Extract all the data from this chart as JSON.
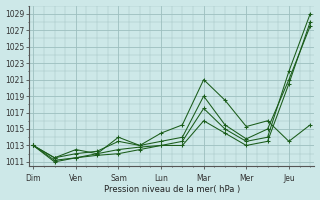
{
  "xlabel": "Pression niveau de la mer( hPa )",
  "bg_color": "#cde8e8",
  "grid_color": "#9dbfbf",
  "line_color": "#1a5c1a",
  "ylim": [
    1010.5,
    1030
  ],
  "yticks": [
    1011,
    1013,
    1015,
    1017,
    1019,
    1021,
    1023,
    1025,
    1027,
    1029
  ],
  "x_labels": [
    "Dim",
    "Ven",
    "Sam",
    "Lun",
    "Mar",
    "Mer",
    "Jeu"
  ],
  "x_positions": [
    0,
    1,
    2,
    3,
    4,
    5,
    6
  ],
  "xlim": [
    -0.1,
    6.6
  ],
  "series": [
    {
      "x": [
        0,
        0.5,
        1.0,
        1.5,
        2.0,
        2.5,
        3.0,
        3.5,
        4.0,
        4.5,
        5.0,
        5.5,
        6.0,
        6.5
      ],
      "y": [
        1013,
        1011.5,
        1012.5,
        1012,
        1014,
        1013,
        1014.5,
        1015.5,
        1021,
        1018.5,
        1015.3,
        1016,
        1013.5,
        1015.5
      ]
    },
    {
      "x": [
        0,
        0.5,
        1.0,
        1.5,
        2.0,
        2.5,
        3.0,
        3.5,
        4.0,
        4.5,
        5.0,
        5.5,
        6.0,
        6.5
      ],
      "y": [
        1013,
        1011.5,
        1012,
        1012.3,
        1013.5,
        1013,
        1013.5,
        1014,
        1019,
        1015.5,
        1013.8,
        1015,
        1021,
        1027.5
      ]
    },
    {
      "x": [
        0,
        0.5,
        1.0,
        1.5,
        2.0,
        2.5,
        3.0,
        3.5,
        4.0,
        4.5,
        5.0,
        5.5,
        6.0,
        6.5
      ],
      "y": [
        1013,
        1011.2,
        1011.5,
        1012,
        1012.5,
        1012.8,
        1013,
        1013.5,
        1017.5,
        1015,
        1013.5,
        1014,
        1022,
        1029
      ]
    },
    {
      "x": [
        0,
        0.5,
        1.0,
        1.5,
        2.0,
        2.5,
        3.0,
        3.5,
        4.0,
        4.5,
        5.0,
        5.5,
        6.0,
        6.5
      ],
      "y": [
        1013,
        1011,
        1011.5,
        1011.8,
        1012,
        1012.5,
        1013,
        1013,
        1016,
        1014.5,
        1013,
        1013.5,
        1020.5,
        1028
      ]
    }
  ]
}
